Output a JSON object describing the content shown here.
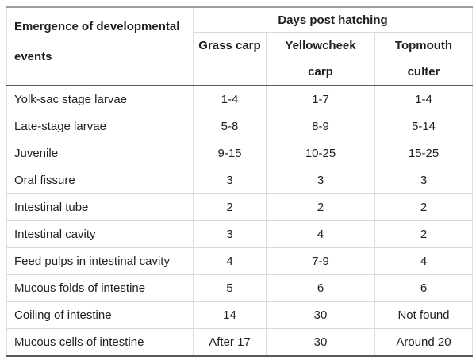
{
  "table": {
    "corner_header": "Emergence of developmental\nevents",
    "group_header": "Days post hatching",
    "columns": [
      "Grass carp",
      "Yellowcheek\ncarp",
      "Topmouth\nculter"
    ],
    "rows": [
      {
        "event": "Yolk-sac stage larvae",
        "values": [
          "1-4",
          "1-7",
          "1-4"
        ]
      },
      {
        "event": "Late-stage larvae",
        "values": [
          "5-8",
          "8-9",
          "5-14"
        ]
      },
      {
        "event": "Juvenile",
        "values": [
          "9-15",
          "10-25",
          "15-25"
        ]
      },
      {
        "event": "Oral fissure",
        "values": [
          "3",
          "3",
          "3"
        ]
      },
      {
        "event": "Intestinal tube",
        "values": [
          "2",
          "2",
          "2"
        ]
      },
      {
        "event": "Intestinal cavity",
        "values": [
          "3",
          "4",
          "2"
        ]
      },
      {
        "event": "Feed pulps in intestinal cavity",
        "values": [
          "4",
          "7-9",
          "4"
        ]
      },
      {
        "event": "Mucous folds of intestine",
        "values": [
          "5",
          "6",
          "6"
        ]
      },
      {
        "event": "Coiling of intestine",
        "values": [
          "14",
          "30",
          "Not found"
        ]
      },
      {
        "event": "Mucous cells of intestine",
        "values": [
          "After 17",
          "30",
          "Around 20"
        ]
      }
    ],
    "colors": {
      "text": "#1f1f1f",
      "border_dark": "#595959",
      "border_top": "#9c9c9c",
      "border_light": "#d9d9d9"
    }
  }
}
